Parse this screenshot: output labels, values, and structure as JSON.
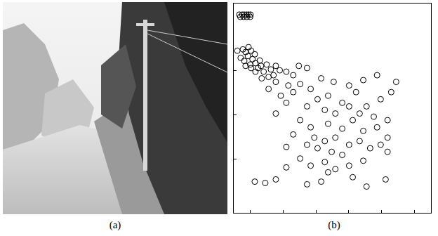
{
  "panels": {
    "a": {
      "label": "(a)"
    },
    "b": {
      "label": "(b)"
    }
  },
  "chart_data": {
    "type": "scatter",
    "marker": "circle-open",
    "color": "#000000",
    "tick_labels": false,
    "grid": false,
    "xlim": [
      -0.5,
      5.5
    ],
    "xticks": [
      0,
      1,
      2,
      3,
      4,
      5
    ],
    "ylim": [
      -1.2,
      3.5
    ],
    "yticks": [
      0,
      1,
      2
    ],
    "x": [
      -0.33,
      -0.24,
      -0.18,
      -0.11,
      -0.05,
      0.01,
      -0.3,
      -0.2,
      -0.1,
      0.0,
      -0.22,
      -0.14,
      -0.05,
      0.03,
      -0.29,
      -0.18,
      -0.07,
      0.0,
      0.07,
      0.16,
      0.24,
      0.33,
      0.41,
      0.14,
      0.29,
      0.5,
      0.63,
      0.78,
      0.71,
      0.56,
      0.9,
      1.1,
      1.31,
      1.48,
      1.73,
      0.03,
      -0.14,
      0.16,
      0.35,
      -0.39,
      0.78,
      1.16,
      1.52,
      1.84,
      2.16,
      2.54,
      3.01,
      3.44,
      3.86,
      4.44,
      0.56,
      0.93,
      1.31,
      2.05,
      2.37,
      2.8,
      3.22,
      3.54,
      3.97,
      4.29,
      1.1,
      1.73,
      2.27,
      2.59,
      3.01,
      3.33,
      3.76,
      4.18,
      0.78,
      1.52,
      1.84,
      2.37,
      2.8,
      3.12,
      3.44,
      3.86,
      4.18,
      1.31,
      1.95,
      2.27,
      2.59,
      3.01,
      3.33,
      3.65,
      2.05,
      1.73,
      1.1,
      2.48,
      2.8,
      3.97,
      4.18,
      1.52,
      1.84,
      2.27,
      2.59,
      3.01,
      3.44,
      1.1,
      0.78,
      0.14,
      0.46,
      1.73,
      2.16,
      3.54,
      4.12,
      3.12,
      2.37
    ],
    "y": [
      3.25,
      3.25,
      3.25,
      3.25,
      3.25,
      3.25,
      3.2,
      3.2,
      3.2,
      3.2,
      2.47,
      2.41,
      2.52,
      2.44,
      2.28,
      2.21,
      2.32,
      2.13,
      2.25,
      2.16,
      2.05,
      2.1,
      1.97,
      2.36,
      2.22,
      2.13,
      2.02,
      2.1,
      1.89,
      1.85,
      2.0,
      1.97,
      1.89,
      2.1,
      2.05,
      2.05,
      2.1,
      1.97,
      1.82,
      2.44,
      1.74,
      1.66,
      1.69,
      1.58,
      1.82,
      1.74,
      1.66,
      1.78,
      1.89,
      1.74,
      1.58,
      1.43,
      1.51,
      1.35,
      1.43,
      1.27,
      1.51,
      1.19,
      1.35,
      1.51,
      1.27,
      1.19,
      1.11,
      1.03,
      1.19,
      1.03,
      0.96,
      0.88,
      1.03,
      0.88,
      0.72,
      0.8,
      0.69,
      0.88,
      0.64,
      0.72,
      0.49,
      0.56,
      0.49,
      0.41,
      0.49,
      0.33,
      0.41,
      0.25,
      0.25,
      0.33,
      0.28,
      0.17,
      0.1,
      0.33,
      0.17,
      0.02,
      -0.14,
      -0.06,
      -0.22,
      -0.14,
      -0.03,
      -0.18,
      -0.45,
      -0.5,
      -0.53,
      -0.56,
      -0.5,
      -0.61,
      -0.45,
      -0.4,
      -0.29
    ]
  }
}
